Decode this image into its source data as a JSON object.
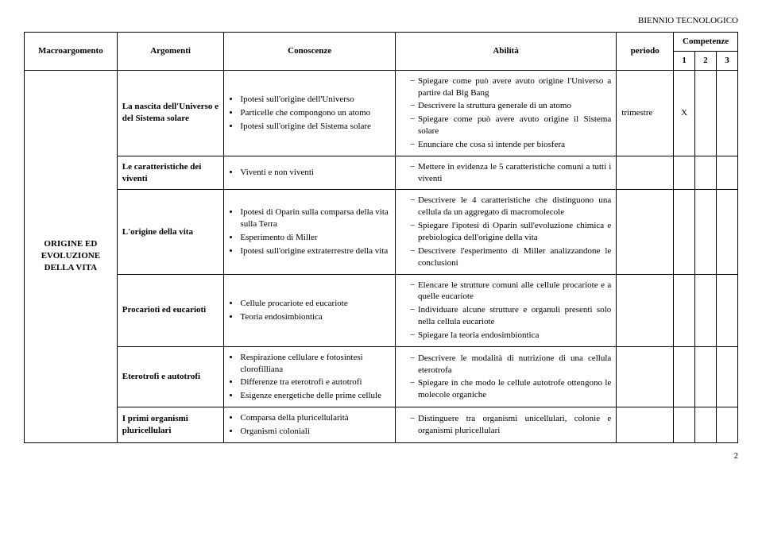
{
  "header": {
    "title": "BIENNIO TECNOLOGICO"
  },
  "columns": {
    "macro": "Macroargomento",
    "arg": "Argomenti",
    "con": "Conoscenze",
    "abil": "Abilità",
    "per": "periodo",
    "comp": "Competenze",
    "c1": "1",
    "c2": "2",
    "c3": "3"
  },
  "macro_label": "ORIGINE ED EVOLUZIONE DELLA VITA",
  "rows": [
    {
      "argomento": "La nascita dell'Universo e del Sistema solare",
      "conoscenze": [
        "Ipotesi sull'origine dell'Universo",
        "Particelle che compongono un atomo",
        "Ipotesi sull'origine del Sistema solare"
      ],
      "abilita": [
        "Spiegare come può avere avuto origine l'Universo a partire dal Big Bang",
        "Descrivere la struttura generale di un atomo",
        "Spiegare come può avere avuto origine il Sistema solare",
        "Enunciare che cosa si intende per biosfera"
      ],
      "periodo": "trimestre",
      "comp": {
        "c1": "X",
        "c2": "",
        "c3": ""
      }
    },
    {
      "argomento": "Le caratteristiche dei viventi",
      "conoscenze": [
        "Viventi e non viventi"
      ],
      "abilita": [
        "Mettere in evidenza le 5 caratteristiche comuni a tutti i viventi"
      ],
      "periodo": "",
      "comp": {
        "c1": "",
        "c2": "",
        "c3": ""
      }
    },
    {
      "argomento": "L'origine della vita",
      "conoscenze": [
        "Ipotesi di Oparin sulla comparsa della vita sulla Terra",
        "Esperimento di Miller",
        "Ipotesi sull'origine extraterrestre della vita"
      ],
      "abilita": [
        "Descrivere le 4 caratteristiche che distinguono una cellula da un aggregato di macromolecole",
        "Spiegare l'ipotesi di Oparin sull'evoluzione chimica e prebiologica dell'origine della vita",
        "Descrivere l'esperimento di Miller analizzandone le conclusioni"
      ],
      "periodo": "",
      "comp": {
        "c1": "",
        "c2": "",
        "c3": ""
      }
    },
    {
      "argomento": "Procarioti ed eucarioti",
      "conoscenze": [
        "Cellule procariote ed eucariote",
        "Teoria endosimbiontica"
      ],
      "abilita": [
        "Elencare le strutture comuni alle cellule procariote e a quelle eucariote",
        "Individuare alcune strutture e organuli presenti solo nella cellula eucariote",
        "Spiegare la teoria endosimbiontica"
      ],
      "periodo": "",
      "comp": {
        "c1": "",
        "c2": "",
        "c3": ""
      }
    },
    {
      "argomento": "Eterotrofi e autotrofi",
      "conoscenze": [
        "Respirazione cellulare e fotosintesi clorofilliana",
        "Differenze tra eterotrofi e autotrofi",
        "Esigenze energetiche delle prime cellule"
      ],
      "abilita": [
        "Descrivere le modalità di nutrizione di una cellula eterotrofa",
        "Spiegare in che modo le cellule autotrofe ottengono le molecole organiche"
      ],
      "periodo": "",
      "comp": {
        "c1": "",
        "c2": "",
        "c3": ""
      }
    },
    {
      "argomento": "I primi organismi pluricellulari",
      "conoscenze": [
        "Comparsa della pluricellularità",
        "Organismi coloniali"
      ],
      "abilita": [
        "Distinguere tra organismi unicellulari, colonie e organismi pluricellulari"
      ],
      "periodo": "",
      "comp": {
        "c1": "",
        "c2": "",
        "c3": ""
      }
    }
  ],
  "page_number": "2"
}
